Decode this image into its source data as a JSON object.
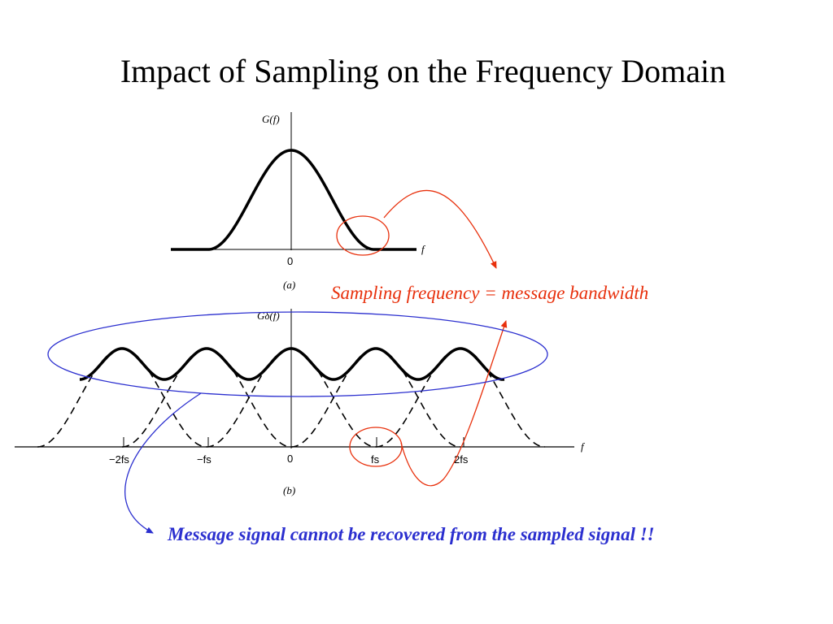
{
  "slide": {
    "title": "Impact of Sampling on the Frequency Domain",
    "colors": {
      "curve": "#000000",
      "red_annotation": "#e8300c",
      "blue_annotation": "#2b2fcf"
    }
  },
  "figure_a": {
    "y_label": "G(f)",
    "x_label": "f",
    "origin_label": "0",
    "caption": "(a)"
  },
  "figure_b": {
    "y_label": "Gδ(f)",
    "x_label": "f",
    "tick_labels": [
      "−2fs",
      "−fs",
      "0",
      "fs",
      "2fs"
    ],
    "caption": "(b)"
  },
  "annotations": {
    "red_text": "Sampling frequency = message bandwidth",
    "blue_text": "Message signal cannot be recovered from the sampled signal !!"
  }
}
